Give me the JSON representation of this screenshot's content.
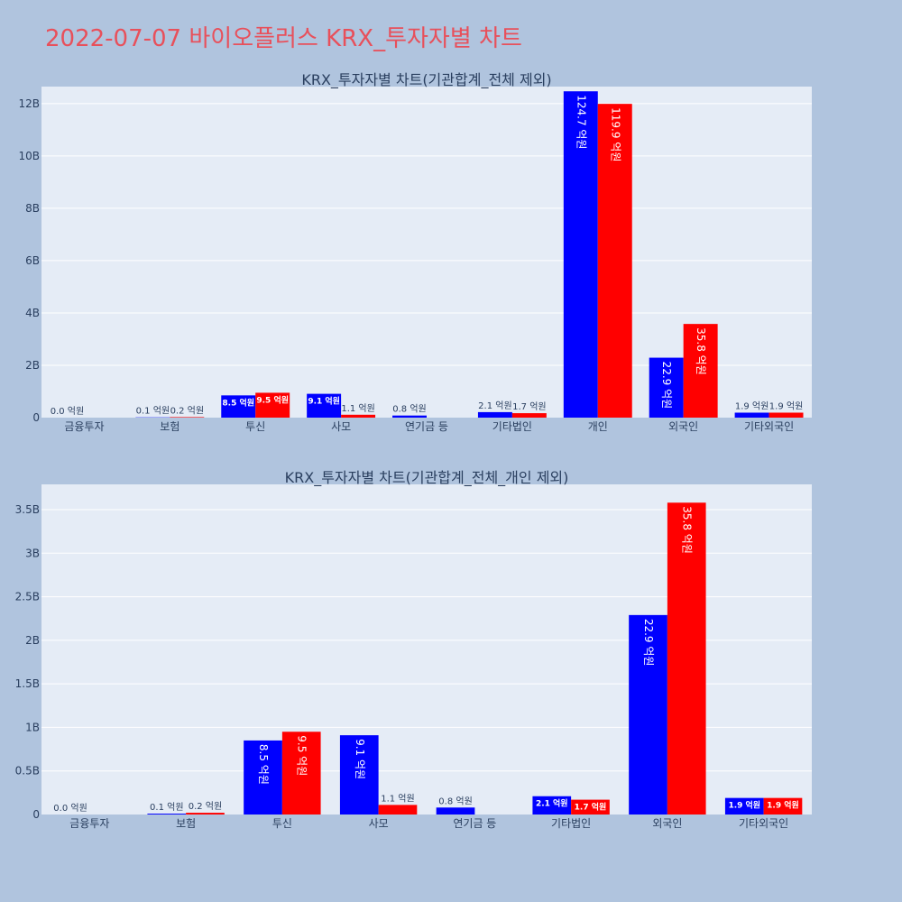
{
  "page_title": "2022-07-07 바이오플러스 KRX_투자자별 차트",
  "colors": {
    "buy": "#0000ff",
    "sell": "#ff0000",
    "plot_bg": "#e5ecf6",
    "paper_bg": "#b0c4de",
    "title": "#e8505b"
  },
  "chart_data": [
    {
      "type": "bar",
      "title": "KRX_투자자별 차트(기관합계_전체 제외)",
      "categories": [
        "금융투자",
        "보험",
        "투신",
        "사모",
        "연기금 등",
        "기타법인",
        "개인",
        "외국인",
        "기타외국인"
      ],
      "series": [
        {
          "values": [
            0.0,
            0.1,
            8.5,
            9.1,
            0.8,
            2.1,
            124.7,
            22.9,
            1.9
          ],
          "labels": [
            "0.0 억원",
            "0.1 억원",
            "8.5 억원",
            "9.1 억원",
            "0.8 억원",
            "2.1 억원",
            "124.7 억원",
            "22.9 억원",
            "1.9 억원"
          ]
        },
        {
          "values": [
            0.0,
            0.2,
            9.5,
            1.1,
            0.0,
            1.7,
            119.9,
            35.8,
            1.9
          ],
          "labels": [
            "",
            "0.2 억원",
            "9.5 억원",
            "1.1 억원",
            "",
            "1.7 억원",
            "119.9 억원",
            "35.8 억원",
            "1.9 억원"
          ]
        }
      ],
      "value_unit": "억원",
      "yticks": [
        0,
        20,
        40,
        60,
        80,
        100,
        120
      ],
      "ytick_labels": [
        "0",
        "2B",
        "4B",
        "6B",
        "8B",
        "10B",
        "12B"
      ],
      "ylim": [
        0,
        126.5
      ],
      "grid": true,
      "legend": "none"
    },
    {
      "type": "bar",
      "title": "KRX_투자자별 차트(기관합계_전체_개인 제외)",
      "categories": [
        "금융투자",
        "보험",
        "투신",
        "사모",
        "연기금 등",
        "기타법인",
        "외국인",
        "기타외국인"
      ],
      "series": [
        {
          "values": [
            0.0,
            0.1,
            8.5,
            9.1,
            0.8,
            2.1,
            22.9,
            1.9
          ],
          "labels": [
            "0.0 억원",
            "0.1 억원",
            "8.5 억원",
            "9.1 억원",
            "0.8 억원",
            "2.1 억원",
            "22.9 억원",
            "1.9 억원"
          ]
        },
        {
          "values": [
            0.0,
            0.2,
            9.5,
            1.1,
            0.0,
            1.7,
            35.8,
            1.9
          ],
          "labels": [
            "",
            "0.2 억원",
            "9.5 억원",
            "1.1 억원",
            "",
            "1.7 억원",
            "35.8 억원",
            "1.9 억원"
          ]
        }
      ],
      "value_unit": "억원",
      "yticks": [
        0,
        5,
        10,
        15,
        20,
        25,
        30,
        35
      ],
      "ytick_labels": [
        "0",
        "0.5B",
        "1B",
        "1.5B",
        "2B",
        "2.5B",
        "3B",
        "3.5B"
      ],
      "ylim": [
        0,
        37.9
      ],
      "grid": true,
      "legend": "none"
    }
  ]
}
